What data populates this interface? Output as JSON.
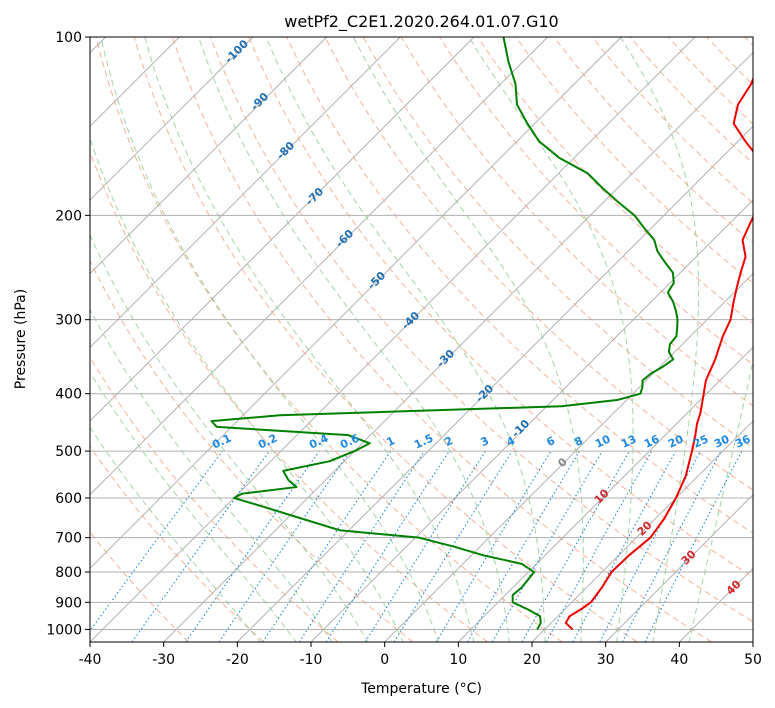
{
  "chart_data": {
    "type": "line",
    "title": "wetPf2_C2E1.2020.264.01.07.G10",
    "xlabel": "Temperature (°C)",
    "ylabel": "Pressure (hPa)",
    "xlim": [
      -40,
      50
    ],
    "ylim": [
      1050,
      100
    ],
    "y_scale": "log",
    "grid": true,
    "x_ticks": [
      -40,
      -30,
      -20,
      -10,
      0,
      10,
      20,
      30,
      40,
      50
    ],
    "y_ticks": [
      1000,
      900,
      800,
      700,
      600,
      500,
      400,
      300,
      200,
      100
    ],
    "skew": 45,
    "series": [
      {
        "color": "#ee0000",
        "points": [
          [
            23.8,
            1000
          ],
          [
            22.0,
            975
          ],
          [
            21.6,
            950
          ],
          [
            22.2,
            925
          ],
          [
            22.6,
            900
          ],
          [
            22.1,
            850
          ],
          [
            21.3,
            800
          ],
          [
            21.4,
            750
          ],
          [
            21.9,
            700
          ],
          [
            21.2,
            650
          ],
          [
            20.0,
            600
          ],
          [
            18.3,
            550
          ],
          [
            15.8,
            500
          ],
          [
            14.1,
            470
          ],
          [
            12.8,
            450
          ],
          [
            11.7,
            430
          ],
          [
            9.6,
            400
          ],
          [
            8.1,
            380
          ],
          [
            6.5,
            350
          ],
          [
            4.4,
            320
          ],
          [
            3.2,
            300
          ],
          [
            1.2,
            280
          ],
          [
            -0.3,
            265
          ],
          [
            -1.8,
            250
          ],
          [
            -3.3,
            235
          ],
          [
            -6.0,
            220
          ],
          [
            -7.8,
            200
          ],
          [
            -9.5,
            185
          ],
          [
            -12.4,
            170
          ],
          [
            -15.0,
            160
          ],
          [
            -19.0,
            150
          ],
          [
            -23.0,
            140
          ],
          [
            -25.0,
            130
          ],
          [
            -26.0,
            120
          ],
          [
            -27.5,
            112
          ],
          [
            -29.5,
            105
          ],
          [
            -31.0,
            100
          ]
        ]
      },
      {
        "color": "#008000",
        "points": [
          [
            19.0,
            1000
          ],
          [
            18.6,
            975
          ],
          [
            17.6,
            950
          ],
          [
            15.0,
            925
          ],
          [
            12.0,
            900
          ],
          [
            11.0,
            875
          ],
          [
            11.2,
            850
          ],
          [
            11.0,
            825
          ],
          [
            10.8,
            800
          ],
          [
            8.0,
            775
          ],
          [
            1.7,
            750
          ],
          [
            -3.5,
            725
          ],
          [
            -9.5,
            700
          ],
          [
            -21.3,
            680
          ],
          [
            -28.0,
            650
          ],
          [
            -35.0,
            620
          ],
          [
            -40.0,
            600
          ],
          [
            -39.5,
            590
          ],
          [
            -33.0,
            575
          ],
          [
            -35.0,
            560
          ],
          [
            -37.0,
            540
          ],
          [
            -32.0,
            520
          ],
          [
            -30.0,
            500
          ],
          [
            -29.0,
            485
          ],
          [
            -33.0,
            470
          ],
          [
            -52.0,
            455
          ],
          [
            -53.5,
            445
          ],
          [
            -45.0,
            435
          ],
          [
            -8.0,
            420
          ],
          [
            -1.3,
            410
          ],
          [
            1.0,
            400
          ],
          [
            0.4,
            390
          ],
          [
            -0.5,
            380
          ],
          [
            -0.3,
            370
          ],
          [
            0.4,
            360
          ],
          [
            0.8,
            350
          ],
          [
            -0.8,
            340
          ],
          [
            -1.7,
            330
          ],
          [
            -1.9,
            320
          ],
          [
            -2.9,
            310
          ],
          [
            -4.0,
            300
          ],
          [
            -5.4,
            290
          ],
          [
            -7.0,
            280
          ],
          [
            -9.0,
            270
          ],
          [
            -9.5,
            260
          ],
          [
            -11.0,
            250
          ],
          [
            -13.5,
            240
          ],
          [
            -16.0,
            230
          ],
          [
            -18.0,
            220
          ],
          [
            -21.0,
            210
          ],
          [
            -24.0,
            200
          ],
          [
            -28.0,
            190
          ],
          [
            -32.0,
            180
          ],
          [
            -36.0,
            170
          ],
          [
            -42.0,
            160
          ],
          [
            -47.0,
            150
          ],
          [
            -51.0,
            140
          ],
          [
            -55.0,
            130
          ],
          [
            -58.0,
            120
          ],
          [
            -62.0,
            110
          ],
          [
            -66.0,
            100
          ]
        ]
      }
    ],
    "dry_adiabat_labels": [
      "-100",
      "-90",
      "-80",
      "-70",
      "-60",
      "-50",
      "-40",
      "-30",
      "-20",
      "-10",
      "0",
      "10",
      "20",
      "30",
      "40"
    ],
    "mixing_ratio_labels": [
      "0.1",
      "0.2",
      "0.4",
      "0.6",
      "1",
      "1.5",
      "2",
      "3",
      "4",
      "6",
      "8",
      "10",
      "13",
      "16",
      "20",
      "25",
      "30",
      "36"
    ],
    "colors": {
      "temperature": "#ee0000",
      "dewpoint": "#008000",
      "dry_adiabat": "#f4a582",
      "moist_adiabat": "#8fc98f",
      "mixing_ratio": "#1e88e5",
      "isotherm_skewed": "#aaaaaa",
      "dry_label": "#1f6fb4",
      "warm_label": "#d62728"
    }
  }
}
